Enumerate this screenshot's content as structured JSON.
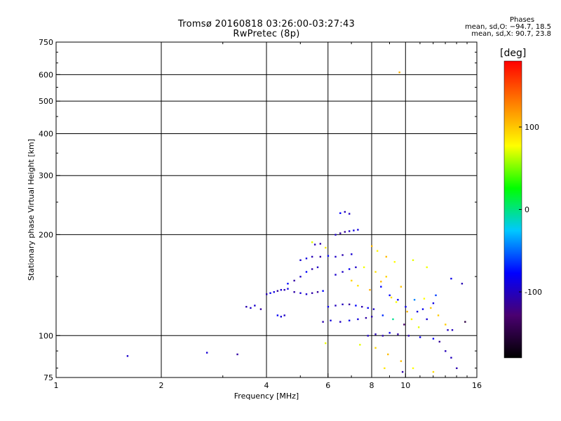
{
  "header": {
    "title_line1": "Tromsø 20160818 03:26:00-03:27:43",
    "title_line2": "RwPretec (8p)"
  },
  "phases_box": {
    "heading": "Phases",
    "line_o": "mean, sd,O: −94.7, 18.5",
    "line_x": "mean, sd,X:  90.7, 23.8"
  },
  "colorbar": {
    "unit": "[deg]",
    "ticks": [
      {
        "value": 100,
        "label": "100"
      },
      {
        "value": 0,
        "label": "0"
      },
      {
        "value": -100,
        "label": "-100"
      }
    ],
    "range": [
      -180,
      180
    ],
    "colormap": [
      "#000000",
      "#4a0070",
      "#0000ff",
      "#00c8ff",
      "#00ff00",
      "#ffff00",
      "#ff8000",
      "#ff0000"
    ]
  },
  "chart_data": {
    "type": "scatter",
    "title": "Tromsø 20160818 03:26:00-03:27:43",
    "subtitle": "RwPretec (8p)",
    "xlabel": "Frequency [MHz]",
    "ylabel": "Stationary phase Virtual Height [km]",
    "xscale": "log",
    "yscale": "log",
    "xlim": [
      1,
      16
    ],
    "ylim": [
      75,
      750
    ],
    "x_ticks": [
      1,
      2,
      4,
      6,
      8,
      10,
      16
    ],
    "y_ticks": [
      75,
      100,
      200,
      300,
      400,
      500,
      600,
      750
    ],
    "grid": true,
    "color_variable": "phase [deg]",
    "series": [
      {
        "polarity": "O",
        "color_phase": -95,
        "points": [
          [
            1.6,
            87
          ],
          [
            2.7,
            89
          ],
          [
            3.3,
            88
          ],
          [
            3.5,
            122
          ],
          [
            3.6,
            121
          ],
          [
            3.7,
            123
          ],
          [
            3.85,
            120
          ],
          [
            4.3,
            115
          ],
          [
            4.4,
            114
          ],
          [
            4.5,
            115
          ],
          [
            4.0,
            133
          ],
          [
            4.1,
            134
          ],
          [
            4.2,
            135
          ],
          [
            4.3,
            136
          ],
          [
            4.4,
            137
          ],
          [
            4.5,
            137
          ],
          [
            4.6,
            138
          ],
          [
            4.8,
            135
          ],
          [
            5.0,
            134
          ],
          [
            5.2,
            133
          ],
          [
            5.4,
            134
          ],
          [
            5.6,
            135
          ],
          [
            5.8,
            136
          ],
          [
            4.6,
            143
          ],
          [
            4.8,
            146
          ],
          [
            5.0,
            150
          ],
          [
            5.2,
            155
          ],
          [
            5.4,
            158
          ],
          [
            5.6,
            160
          ],
          [
            5.0,
            168
          ],
          [
            5.2,
            170
          ],
          [
            5.4,
            172
          ],
          [
            5.7,
            172
          ],
          [
            6.0,
            173
          ],
          [
            6.3,
            172
          ],
          [
            6.6,
            174
          ],
          [
            7.0,
            175
          ],
          [
            5.5,
            187
          ],
          [
            5.7,
            188
          ],
          [
            6.0,
            122
          ],
          [
            6.3,
            123
          ],
          [
            6.6,
            124
          ],
          [
            6.9,
            124
          ],
          [
            7.2,
            123
          ],
          [
            7.5,
            122
          ],
          [
            7.8,
            121
          ],
          [
            8.1,
            120
          ],
          [
            5.8,
            110
          ],
          [
            6.1,
            111
          ],
          [
            6.5,
            110
          ],
          [
            6.9,
            111
          ],
          [
            7.3,
            112
          ],
          [
            7.7,
            113
          ],
          [
            8.0,
            114
          ],
          [
            6.3,
            200
          ],
          [
            6.5,
            202
          ],
          [
            6.7,
            204
          ],
          [
            6.9,
            205
          ],
          [
            7.1,
            206
          ],
          [
            7.3,
            207
          ],
          [
            6.5,
            232
          ],
          [
            6.7,
            234
          ],
          [
            6.9,
            231
          ],
          [
            6.3,
            152
          ],
          [
            6.6,
            155
          ],
          [
            6.9,
            158
          ],
          [
            7.2,
            160
          ],
          [
            7.8,
            100
          ],
          [
            8.2,
            101
          ],
          [
            8.6,
            100
          ],
          [
            9.0,
            102
          ],
          [
            9.5,
            101
          ],
          [
            10.2,
            100
          ],
          [
            11.0,
            99
          ],
          [
            12.0,
            98
          ],
          [
            8.5,
            140
          ],
          [
            9.0,
            132
          ],
          [
            9.5,
            128
          ],
          [
            10.0,
            122
          ],
          [
            10.8,
            118
          ],
          [
            11.5,
            112
          ],
          [
            12.5,
            96
          ],
          [
            13.0,
            90
          ],
          [
            13.5,
            86
          ],
          [
            14.0,
            80
          ],
          [
            13.2,
            104
          ],
          [
            12.0,
            125
          ],
          [
            13.5,
            148
          ],
          [
            14.5,
            143
          ]
        ]
      },
      {
        "polarity": "X",
        "color_phase": 91,
        "points": [
          [
            9.6,
            610
          ],
          [
            5.4,
            190
          ],
          [
            5.9,
            183
          ],
          [
            7.0,
            146
          ],
          [
            7.3,
            141
          ],
          [
            7.6,
            160
          ],
          [
            7.9,
            137
          ],
          [
            8.2,
            155
          ],
          [
            8.5,
            145
          ],
          [
            8.8,
            150
          ],
          [
            9.1,
            130
          ],
          [
            9.4,
            126
          ],
          [
            9.7,
            140
          ],
          [
            10.1,
            118
          ],
          [
            10.4,
            112
          ],
          [
            10.9,
            106
          ],
          [
            11.3,
            129
          ],
          [
            11.8,
            121
          ],
          [
            12.4,
            115
          ],
          [
            13.0,
            108
          ],
          [
            8.0,
            185
          ],
          [
            8.3,
            179
          ],
          [
            8.8,
            172
          ],
          [
            9.3,
            166
          ],
          [
            10.5,
            168
          ],
          [
            11.5,
            160
          ],
          [
            7.4,
            94
          ],
          [
            8.2,
            92
          ],
          [
            8.9,
            88
          ],
          [
            9.7,
            84
          ],
          [
            10.5,
            80
          ],
          [
            12.0,
            78
          ],
          [
            5.9,
            95
          ]
        ]
      },
      {
        "polarity": "mixed",
        "color_phase": 0,
        "points": [
          [
            8.6,
            115
          ],
          [
            9.2,
            112
          ],
          [
            9.9,
            108
          ],
          [
            10.6,
            128
          ],
          [
            11.2,
            120
          ],
          [
            12.2,
            132
          ],
          [
            8.7,
            80
          ],
          [
            9.8,
            78
          ],
          [
            13.6,
            104
          ],
          [
            14.8,
            110
          ]
        ]
      }
    ]
  }
}
